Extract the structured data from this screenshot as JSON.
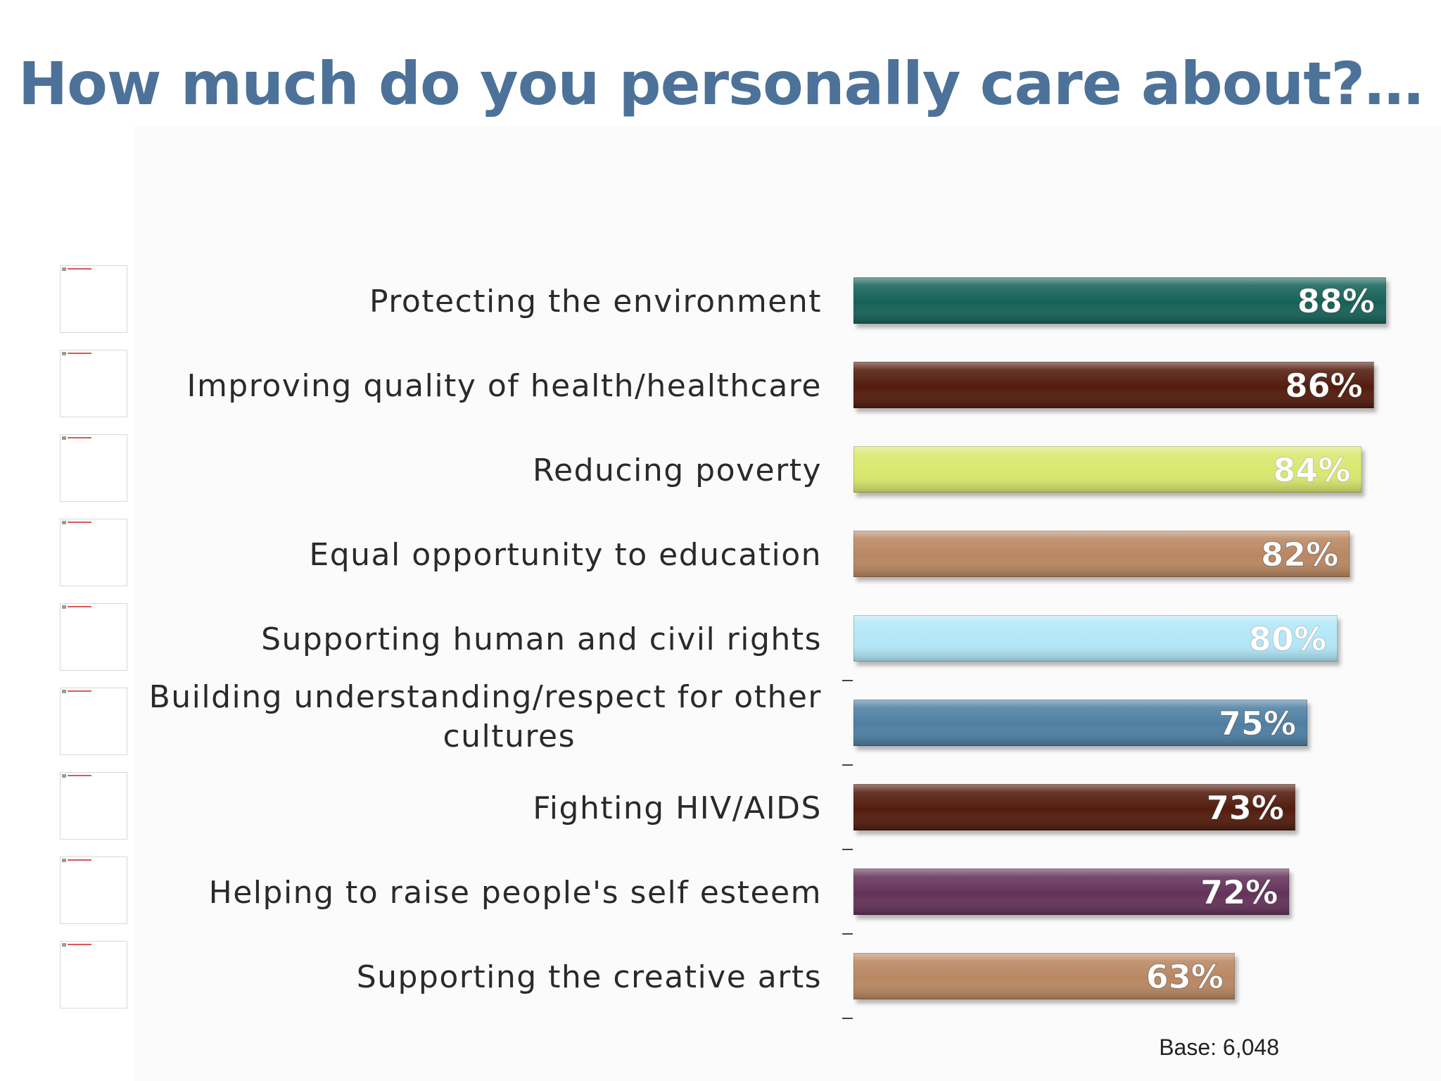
{
  "title": "How much do you personally care about?…",
  "base_note": "Base: 6,048",
  "chart_data": {
    "type": "bar",
    "orientation": "horizontal",
    "title": "How much do you personally care about?…",
    "xlabel": "",
    "ylabel": "",
    "xlim": [
      0,
      100
    ],
    "grid": false,
    "legend": "none",
    "unit": "%",
    "categories": [
      "Protecting the environment",
      "Improving quality of health/healthcare",
      "Reducing poverty",
      "Equal opportunity to education",
      "Supporting human and civil rights",
      "Building understanding/respect for other cultures",
      "Fighting HIV/AIDS",
      "Helping to raise people's self esteem",
      "Supporting the creative arts"
    ],
    "values": [
      88,
      86,
      84,
      82,
      80,
      75,
      73,
      72,
      63
    ],
    "value_labels": [
      "88%",
      "86%",
      "84%",
      "82%",
      "80%",
      "75%",
      "73%",
      "72%",
      "63%"
    ],
    "colors": [
      "#146259",
      "#531e0f",
      "#d9e86e",
      "#b98762",
      "#b2e7f9",
      "#4f7fa3",
      "#531e0f",
      "#65305a",
      "#b98762"
    ]
  }
}
